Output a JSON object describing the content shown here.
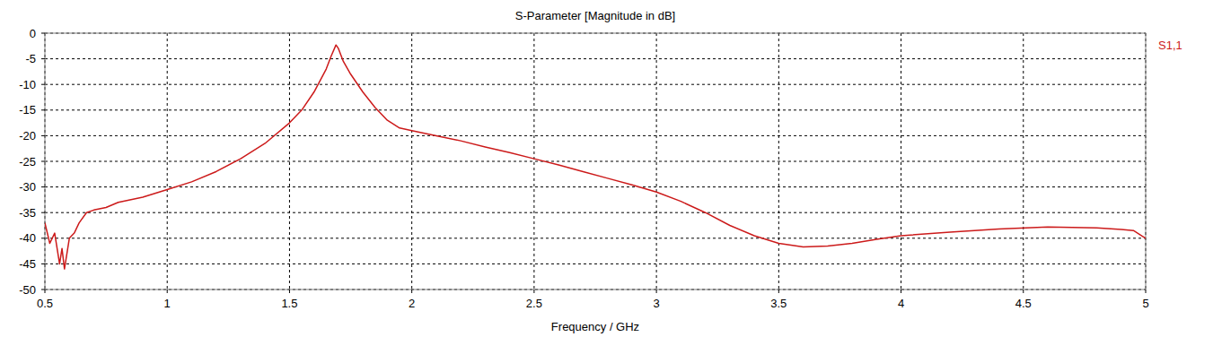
{
  "chart_data": {
    "type": "line",
    "title": "S-Parameter [Magnitude in dB]",
    "x_label": "Frequency / GHz",
    "x": [
      0.5,
      0.52,
      0.54,
      0.56,
      0.57,
      0.58,
      0.6,
      0.62,
      0.64,
      0.67,
      0.7,
      0.75,
      0.8,
      0.9,
      1.0,
      1.1,
      1.2,
      1.3,
      1.4,
      1.5,
      1.55,
      1.6,
      1.65,
      1.67,
      1.69,
      1.7,
      1.72,
      1.75,
      1.8,
      1.85,
      1.9,
      1.95,
      2.0,
      2.1,
      2.2,
      2.3,
      2.4,
      2.5,
      2.6,
      2.7,
      2.8,
      2.9,
      3.0,
      3.1,
      3.2,
      3.3,
      3.4,
      3.5,
      3.6,
      3.7,
      3.8,
      3.9,
      4.0,
      4.2,
      4.4,
      4.6,
      4.8,
      4.9,
      4.95,
      5.0
    ],
    "series": [
      {
        "name": "S1,1",
        "color": "#cc1a1a",
        "values": [
          -37,
          -41,
          -39,
          -45,
          -42,
          -46,
          -40,
          -39,
          -37,
          -35,
          -34.5,
          -34,
          -33,
          -32,
          -30.5,
          -29,
          -27,
          -24.5,
          -21.5,
          -17.5,
          -15,
          -11.5,
          -7,
          -4.5,
          -2.3,
          -3,
          -5.5,
          -8,
          -11.5,
          -14.5,
          -17,
          -18.5,
          -19,
          -20,
          -21,
          -22.2,
          -23.3,
          -24.5,
          -25.7,
          -27,
          -28.3,
          -29.6,
          -31,
          -32.8,
          -35,
          -37.5,
          -39.5,
          -41,
          -41.7,
          -41.5,
          -41,
          -40.2,
          -39.5,
          -38.8,
          -38.2,
          -37.8,
          -38,
          -38.3,
          -38.5,
          -40
        ]
      }
    ],
    "xlim": [
      0.5,
      5
    ],
    "ylim": [
      -50,
      0
    ],
    "xticks": [
      0.5,
      1,
      1.5,
      2,
      2.5,
      3,
      3.5,
      4,
      4.5,
      5
    ],
    "yticks": [
      -50,
      -45,
      -40,
      -35,
      -30,
      -25,
      -20,
      -15,
      -10,
      -5,
      0
    ],
    "grid": true,
    "legend": "right"
  }
}
